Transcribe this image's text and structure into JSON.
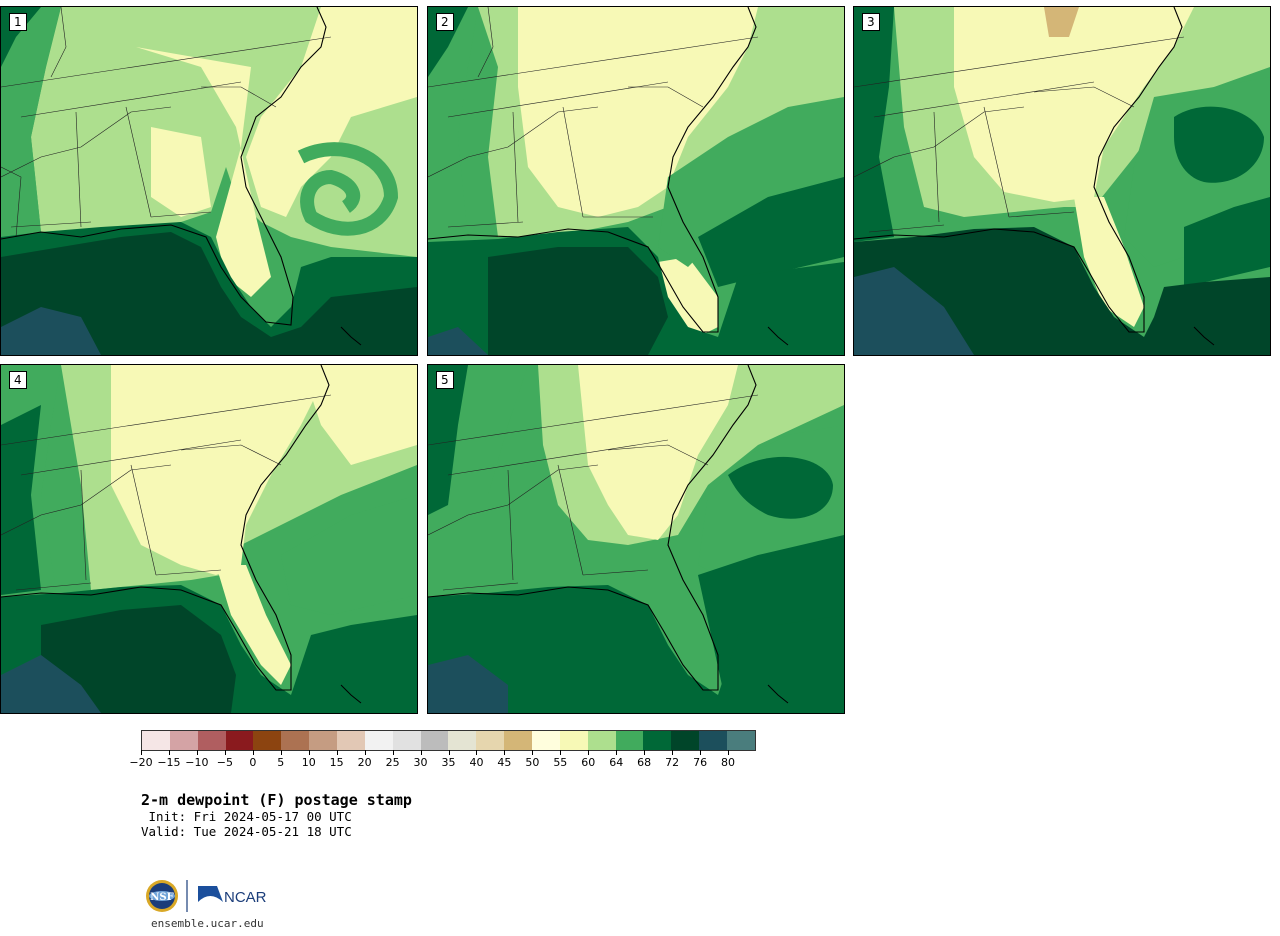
{
  "figure": {
    "title": "2-m dewpoint (F) postage stamp",
    "init": " Init: Fri 2024-05-17 00 UTC",
    "valid": "Valid: Tue 2024-05-21 18 UTC",
    "website": "ensemble.ucar.edu",
    "logos": {
      "nsf": "NSF",
      "ncar": "NCAR"
    }
  },
  "members": [
    {
      "label": "1"
    },
    {
      "label": "2"
    },
    {
      "label": "3"
    },
    {
      "label": "4"
    },
    {
      "label": "5"
    }
  ],
  "colorbar": {
    "tick_labels": [
      "−20",
      "−15",
      "−10",
      "−5",
      "0",
      "5",
      "10",
      "15",
      "20",
      "25",
      "30",
      "35",
      "40",
      "45",
      "50",
      "55",
      "60",
      "64",
      "68",
      "72",
      "76",
      "80"
    ],
    "colors": [
      "#f5e6e6",
      "#d4a3a5",
      "#b05e60",
      "#8a1a1e",
      "#8c4410",
      "#ac7252",
      "#c59c82",
      "#e2c8b5",
      "#f2f2f2",
      "#e1e1e1",
      "#bcbcbc",
      "#e4e4d3",
      "#e6d6ae",
      "#d4b677",
      "#fffedd",
      "#f7f9b6",
      "#addf8e",
      "#41ab5d",
      "#006837",
      "#004529",
      "#1c4f5c",
      "#4a7d7d"
    ]
  },
  "map_colors": {
    "c55": "#fffedd",
    "c60": "#f7f9b6",
    "c64": "#addf8e",
    "c68": "#41ab5d",
    "c72": "#006837",
    "c76": "#004529",
    "c80": "#1c4f5c",
    "c40": "#d4b677"
  }
}
